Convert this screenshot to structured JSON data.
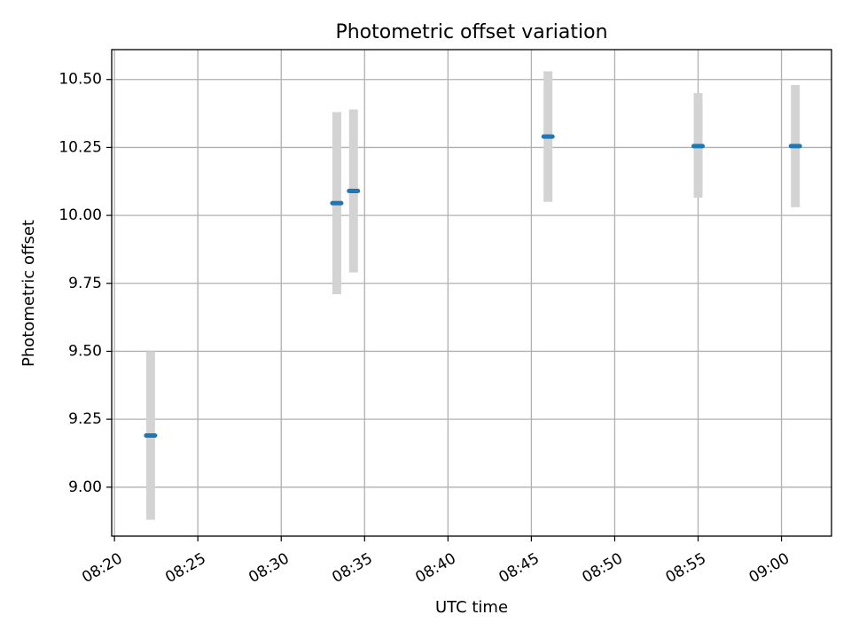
{
  "chart_data": {
    "type": "scatter",
    "title": "Photometric offset variation",
    "xlabel": "UTC time",
    "ylabel": "Photometric offset",
    "x_unit": "UTC time (HH:MM)",
    "xlim": [
      "08:19:50",
      "09:03:00"
    ],
    "ylim": [
      8.82,
      10.61
    ],
    "grid": true,
    "x_ticks": [
      "08:20",
      "08:25",
      "08:30",
      "08:35",
      "08:40",
      "08:45",
      "08:50",
      "08:55",
      "09:00"
    ],
    "y_ticks": [
      "9.00",
      "9.25",
      "9.50",
      "9.75",
      "10.00",
      "10.25",
      "10.50"
    ],
    "x_tick_times": [
      "08:20:00",
      "08:25:00",
      "08:30:00",
      "08:35:00",
      "08:40:00",
      "08:45:00",
      "08:50:00",
      "08:55:00",
      "09:00:00"
    ],
    "y_tick_values": [
      9.0,
      9.25,
      9.5,
      9.75,
      10.0,
      10.25,
      10.5
    ],
    "points": [
      {
        "x": "08:22:10",
        "y": 9.19,
        "err_low": 8.88,
        "err_high": 9.5
      },
      {
        "x": "08:33:20",
        "y": 10.045,
        "err_low": 9.71,
        "err_high": 10.38
      },
      {
        "x": "08:34:20",
        "y": 10.09,
        "err_low": 9.79,
        "err_high": 10.39
      },
      {
        "x": "08:46:00",
        "y": 10.29,
        "err_low": 10.05,
        "err_high": 10.53
      },
      {
        "x": "08:55:00",
        "y": 10.255,
        "err_low": 10.065,
        "err_high": 10.45
      },
      {
        "x": "09:00:50",
        "y": 10.255,
        "err_low": 10.03,
        "err_high": 10.48
      }
    ],
    "point_color": "#1f77b4",
    "errorbar_color": "#d3d3d3",
    "grid_color": "#b0b0b0"
  }
}
